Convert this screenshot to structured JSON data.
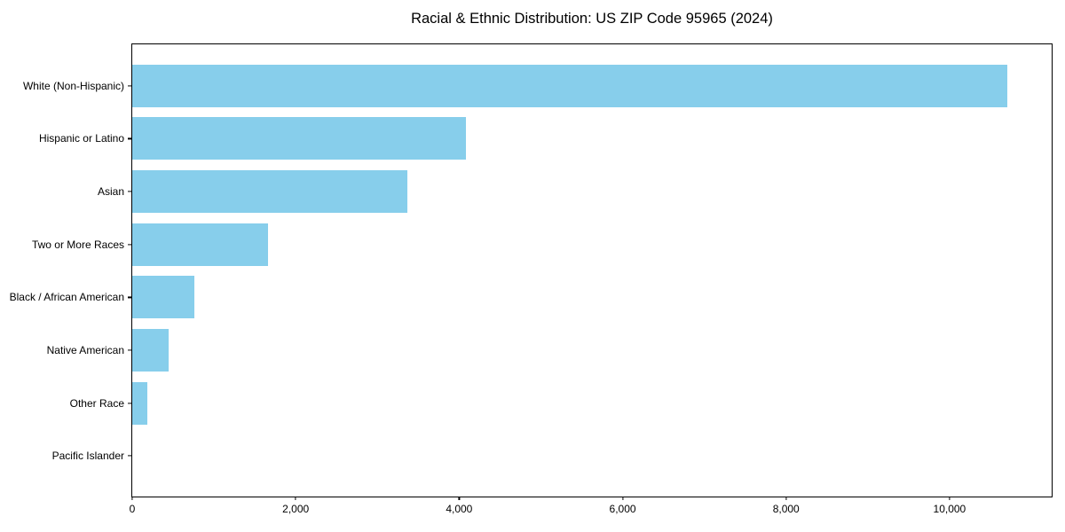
{
  "chart_data": {
    "type": "bar",
    "orientation": "horizontal",
    "title": "Racial & Ethnic Distribution: US ZIP Code 95965 (2024)",
    "categories": [
      "White (Non-Hispanic)",
      "Hispanic or Latino",
      "Asian",
      "Two or More Races",
      "Black / African American",
      "Native American",
      "Other Race",
      "Pacific Islander"
    ],
    "values": [
      10710,
      4080,
      3370,
      1660,
      760,
      445,
      190,
      0
    ],
    "xlabel": "",
    "ylabel": "",
    "xlim": [
      0,
      11250
    ],
    "xticks": [
      0,
      2000,
      4000,
      6000,
      8000,
      10000
    ],
    "xtick_labels": [
      "0",
      "2,000",
      "4,000",
      "6,000",
      "8,000",
      "10,000"
    ],
    "grid": false,
    "legend": "none",
    "colors": {
      "bar": "#87CEEB",
      "background": "#ffffff",
      "text": "#000000",
      "spine": "#000000"
    }
  }
}
